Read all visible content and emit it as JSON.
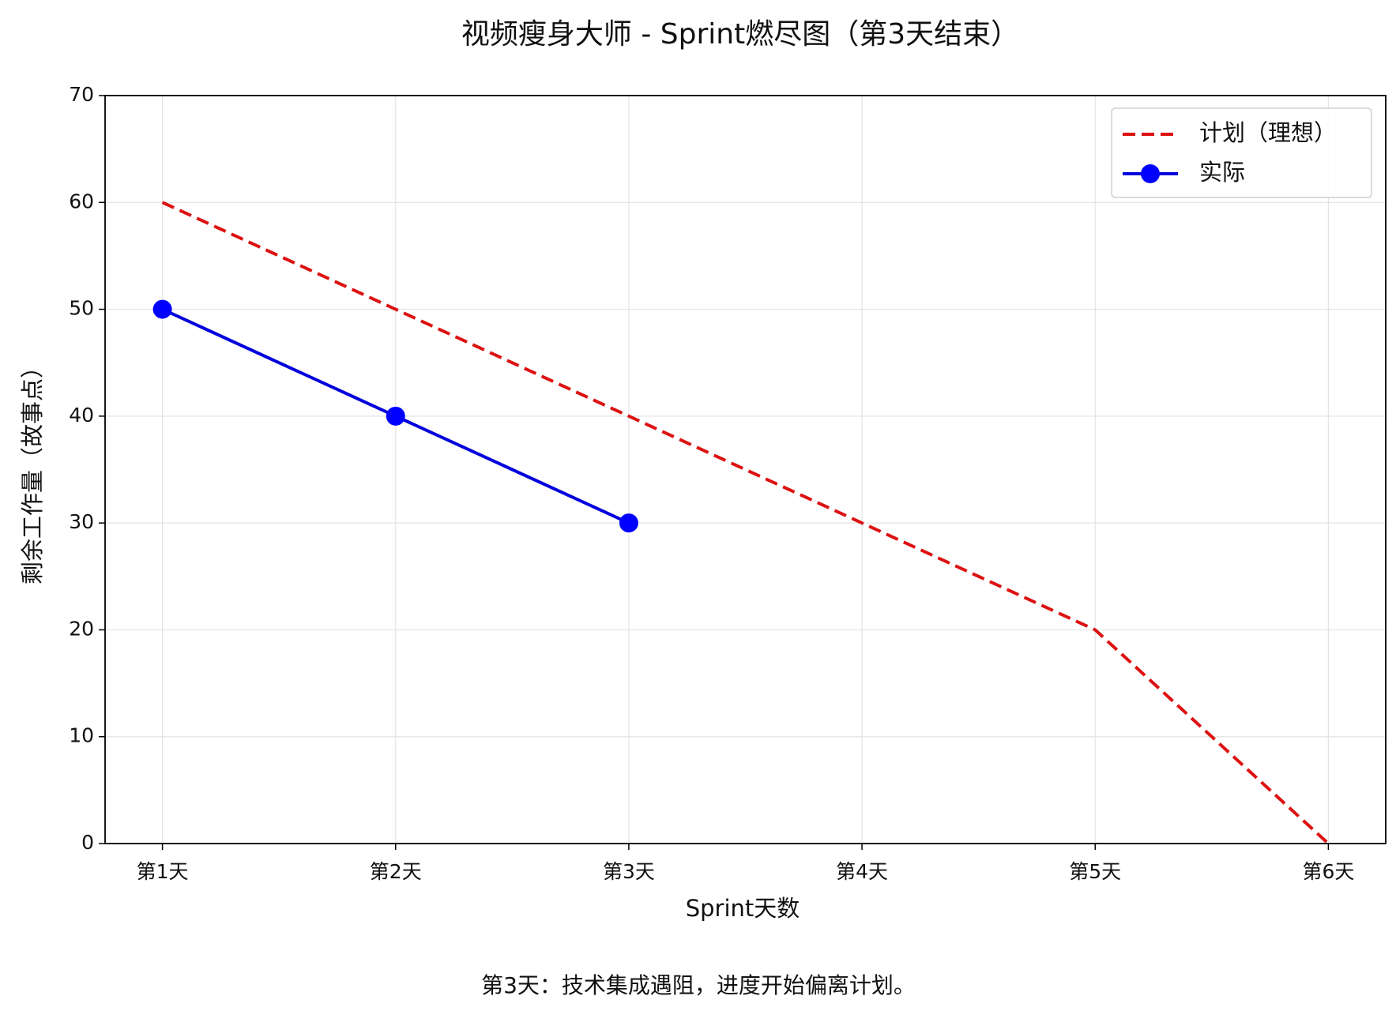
{
  "chart_data": {
    "type": "line",
    "title": "视频瘦身大师 - Sprint燃尽图（第3天结束）",
    "x_label": "Sprint天数",
    "y_label": "剩余工作量（故事点）",
    "annotation": "第3天：技术集成遇阻，进度开始偏离计划。",
    "categories": [
      "第1天",
      "第2天",
      "第3天",
      "第4天",
      "第5天",
      "第6天"
    ],
    "series": [
      {
        "name": "计划（理想）",
        "color": "#dd1111",
        "dashed": true,
        "marker": false,
        "values": [
          60,
          50,
          40,
          30,
          20,
          0
        ]
      },
      {
        "name": "实际",
        "color": "#0000dd",
        "marker_color": "#0000ff",
        "dashed": false,
        "marker": true,
        "values": [
          50,
          40,
          30,
          null,
          null,
          null
        ]
      }
    ],
    "ylim": [
      0,
      70
    ],
    "yticks": [
      0,
      10,
      20,
      30,
      40,
      50,
      60,
      70
    ],
    "grid": true,
    "legend": "upper right"
  }
}
